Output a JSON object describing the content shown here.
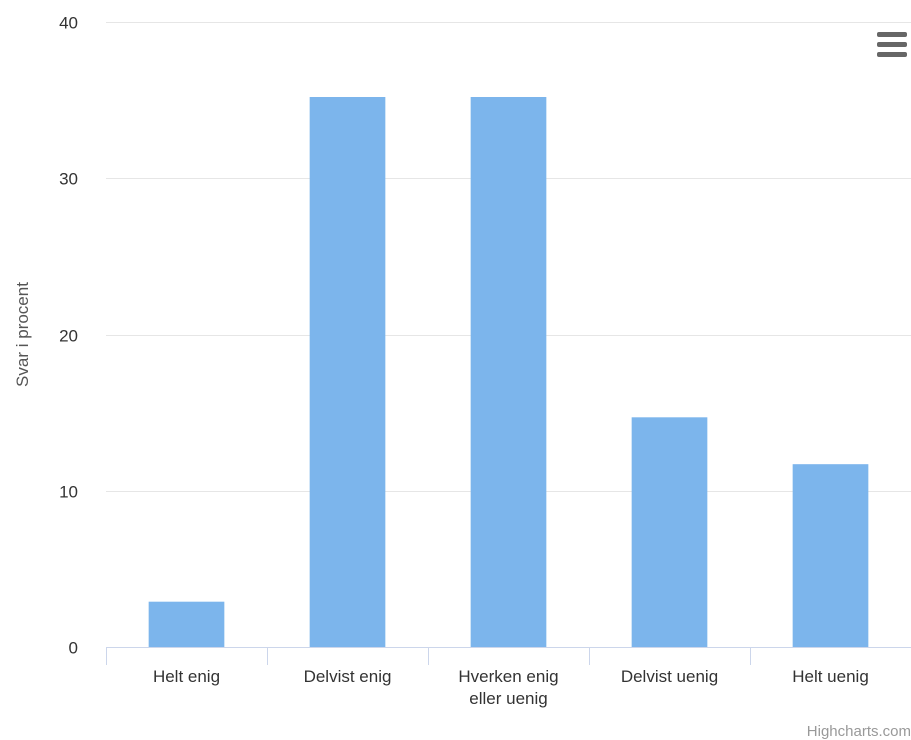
{
  "chart_data": {
    "type": "bar",
    "categories": [
      "Helt enig",
      "Delvist enig",
      "Hverken enig eller uenig",
      "Delvist uenig",
      "Helt uenig"
    ],
    "category_lines": [
      [
        "Helt enig"
      ],
      [
        "Delvist enig"
      ],
      [
        "Hverken enig",
        "eller uenig"
      ],
      [
        "Delvist uenig"
      ],
      [
        "Helt uenig"
      ]
    ],
    "values": [
      2.9,
      35.2,
      35.2,
      14.7,
      11.7
    ],
    "ylabel": "Svar i procent",
    "xlabel": "",
    "ylim": [
      0,
      40
    ],
    "yticks": [
      0,
      10,
      20,
      30,
      40
    ],
    "grid": true,
    "legend": "none",
    "bar_color": "#7cb5ec"
  },
  "menu": {
    "icon": "hamburger-menu-icon"
  },
  "credits": {
    "label": "Highcharts.com"
  },
  "colors": {
    "grid": "#e6e6e6",
    "axis": "#ccd6eb",
    "tick_label": "#333333",
    "axis_title": "#555555",
    "menu": "#666666",
    "credits": "#999999"
  }
}
